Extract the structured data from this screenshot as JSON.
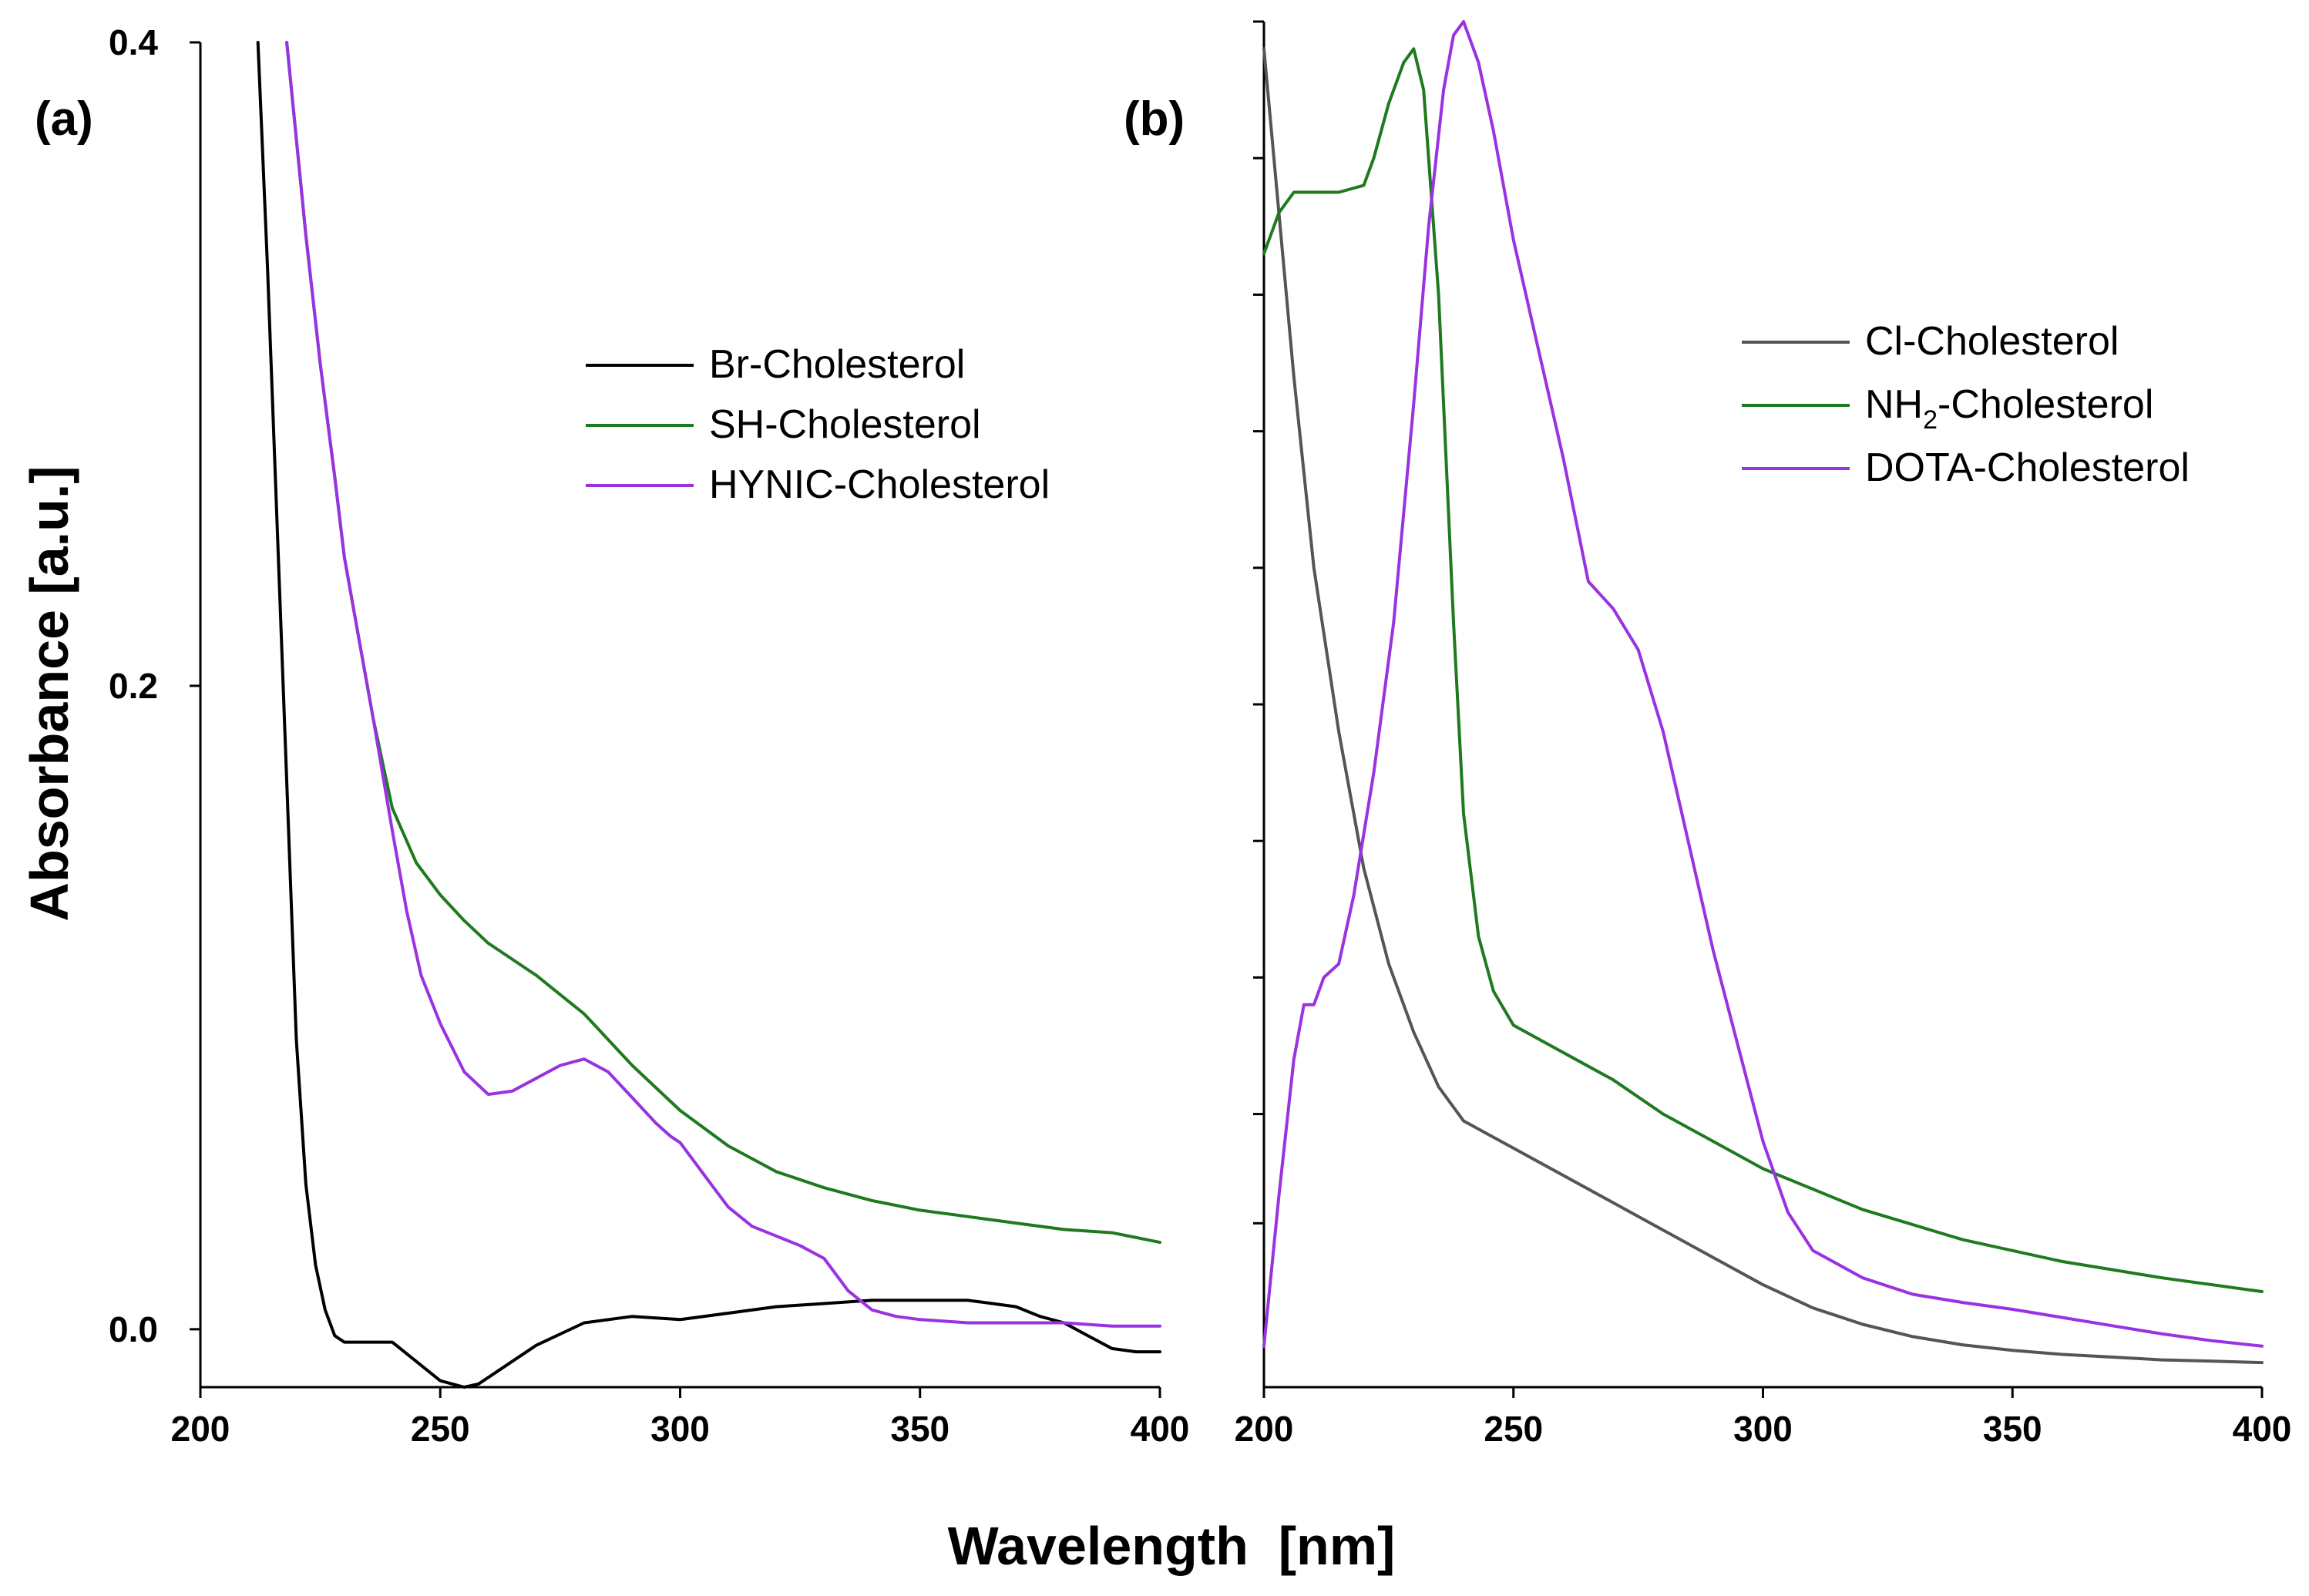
{
  "figure": {
    "xlabel": "Wavelength  [nm]",
    "ylabel": "Absorbance [a.u.]"
  },
  "chart_data": [
    {
      "type": "line",
      "panel_label": "(a)",
      "xlim": [
        200,
        400
      ],
      "ylim": [
        -0.018,
        0.4
      ],
      "xticks": [
        200,
        250,
        300,
        350,
        400
      ],
      "yticks": [
        0.0,
        0.2,
        0.4
      ],
      "ytick_labels": [
        "0.0",
        "0.2",
        "0.4"
      ],
      "legend_position": "top-right",
      "series": [
        {
          "name": "Br-Cholesterol",
          "color": "#000000",
          "x": [
            212,
            214,
            216,
            218,
            220,
            222,
            224,
            226,
            228,
            230,
            235,
            240,
            245,
            250,
            255,
            258,
            262,
            270,
            280,
            290,
            300,
            310,
            320,
            330,
            340,
            350,
            360,
            370,
            375,
            380,
            385,
            390,
            395,
            400
          ],
          "y": [
            0.4,
            0.33,
            0.25,
            0.17,
            0.09,
            0.045,
            0.02,
            0.006,
            -0.002,
            -0.004,
            -0.004,
            -0.004,
            -0.01,
            -0.016,
            -0.018,
            -0.017,
            -0.013,
            -0.005,
            0.002,
            0.004,
            0.003,
            0.005,
            0.007,
            0.008,
            0.009,
            0.009,
            0.009,
            0.007,
            0.004,
            0.002,
            -0.002,
            -0.006,
            -0.007,
            -0.007
          ]
        },
        {
          "name": "SH-Cholesterol",
          "color": "#1f7a1f",
          "x": [
            218,
            220,
            222,
            225,
            228,
            230,
            233,
            236,
            240,
            245,
            250,
            255,
            260,
            270,
            280,
            290,
            300,
            310,
            320,
            330,
            340,
            350,
            360,
            370,
            380,
            390,
            400
          ],
          "y": [
            0.4,
            0.37,
            0.34,
            0.3,
            0.265,
            0.24,
            0.215,
            0.19,
            0.162,
            0.145,
            0.135,
            0.127,
            0.12,
            0.11,
            0.098,
            0.082,
            0.068,
            0.057,
            0.049,
            0.044,
            0.04,
            0.037,
            0.035,
            0.033,
            0.031,
            0.03,
            0.027
          ]
        },
        {
          "name": "HYNIC-Cholesterol",
          "color": "#9932e0",
          "x": [
            218,
            220,
            222,
            225,
            228,
            230,
            233,
            236,
            240,
            243,
            246,
            250,
            255,
            260,
            265,
            270,
            275,
            280,
            285,
            290,
            295,
            298,
            300,
            302,
            305,
            310,
            315,
            320,
            325,
            330,
            335,
            340,
            345,
            350,
            360,
            370,
            380,
            390,
            400
          ],
          "y": [
            0.4,
            0.37,
            0.34,
            0.3,
            0.265,
            0.24,
            0.215,
            0.19,
            0.155,
            0.13,
            0.11,
            0.095,
            0.08,
            0.073,
            0.074,
            0.078,
            0.082,
            0.084,
            0.08,
            0.072,
            0.064,
            0.06,
            0.058,
            0.054,
            0.048,
            0.038,
            0.032,
            0.029,
            0.026,
            0.022,
            0.012,
            0.006,
            0.004,
            0.003,
            0.002,
            0.002,
            0.002,
            0.001,
            0.001
          ]
        }
      ]
    },
    {
      "type": "line",
      "panel_label": "(b)",
      "xlim": [
        200,
        400
      ],
      "ylim": [
        0,
        1
      ],
      "xticks": [
        200,
        250,
        300,
        350,
        400
      ],
      "yticks": [
        0.12,
        0.2,
        0.3,
        0.4,
        0.5,
        0.6,
        0.7,
        0.8,
        0.9,
        1.0
      ],
      "ytick_labels": [],
      "legend_position": "top-right",
      "series": [
        {
          "name": "Cl-Cholesterol",
          "color": "#555555",
          "x": [
            200,
            203,
            206,
            210,
            215,
            220,
            225,
            230,
            235,
            240,
            245,
            250,
            260,
            270,
            280,
            290,
            300,
            310,
            320,
            330,
            340,
            350,
            360,
            370,
            380,
            390,
            400
          ],
          "y": [
            0.98,
            0.86,
            0.74,
            0.6,
            0.48,
            0.38,
            0.31,
            0.26,
            0.22,
            0.195,
            0.185,
            0.175,
            0.155,
            0.135,
            0.115,
            0.095,
            0.075,
            0.058,
            0.046,
            0.037,
            0.031,
            0.027,
            0.024,
            0.022,
            0.02,
            0.019,
            0.018
          ]
        },
        {
          "name": "NH2-Cholesterol",
          "name_display": {
            "prefix": "NH",
            "subscript": "2",
            "suffix": "-Cholesterol"
          },
          "color": "#1f7a1f",
          "x": [
            200,
            203,
            206,
            210,
            215,
            220,
            222,
            225,
            228,
            230,
            232,
            235,
            238,
            240,
            243,
            246,
            250,
            255,
            260,
            270,
            280,
            290,
            300,
            320,
            340,
            360,
            380,
            400
          ],
          "y": [
            0.83,
            0.86,
            0.875,
            0.875,
            0.875,
            0.88,
            0.9,
            0.94,
            0.97,
            0.98,
            0.95,
            0.8,
            0.56,
            0.42,
            0.33,
            0.29,
            0.265,
            0.255,
            0.245,
            0.225,
            0.2,
            0.18,
            0.16,
            0.13,
            0.108,
            0.092,
            0.08,
            0.07
          ]
        },
        {
          "name": "DOTA-Cholesterol",
          "color": "#9932e0",
          "x": [
            200,
            203,
            206,
            208,
            210,
            212,
            215,
            218,
            222,
            226,
            230,
            233,
            236,
            238,
            240,
            243,
            246,
            250,
            255,
            260,
            265,
            270,
            275,
            280,
            285,
            290,
            295,
            300,
            305,
            310,
            320,
            330,
            340,
            350,
            360,
            370,
            380,
            390,
            400
          ],
          "y": [
            0.03,
            0.14,
            0.24,
            0.28,
            0.28,
            0.3,
            0.31,
            0.36,
            0.45,
            0.56,
            0.72,
            0.85,
            0.95,
            0.99,
            1.0,
            0.97,
            0.92,
            0.84,
            0.76,
            0.68,
            0.59,
            0.57,
            0.54,
            0.48,
            0.4,
            0.32,
            0.25,
            0.18,
            0.128,
            0.1,
            0.08,
            0.068,
            0.062,
            0.057,
            0.051,
            0.045,
            0.039,
            0.034,
            0.03
          ]
        }
      ]
    }
  ]
}
